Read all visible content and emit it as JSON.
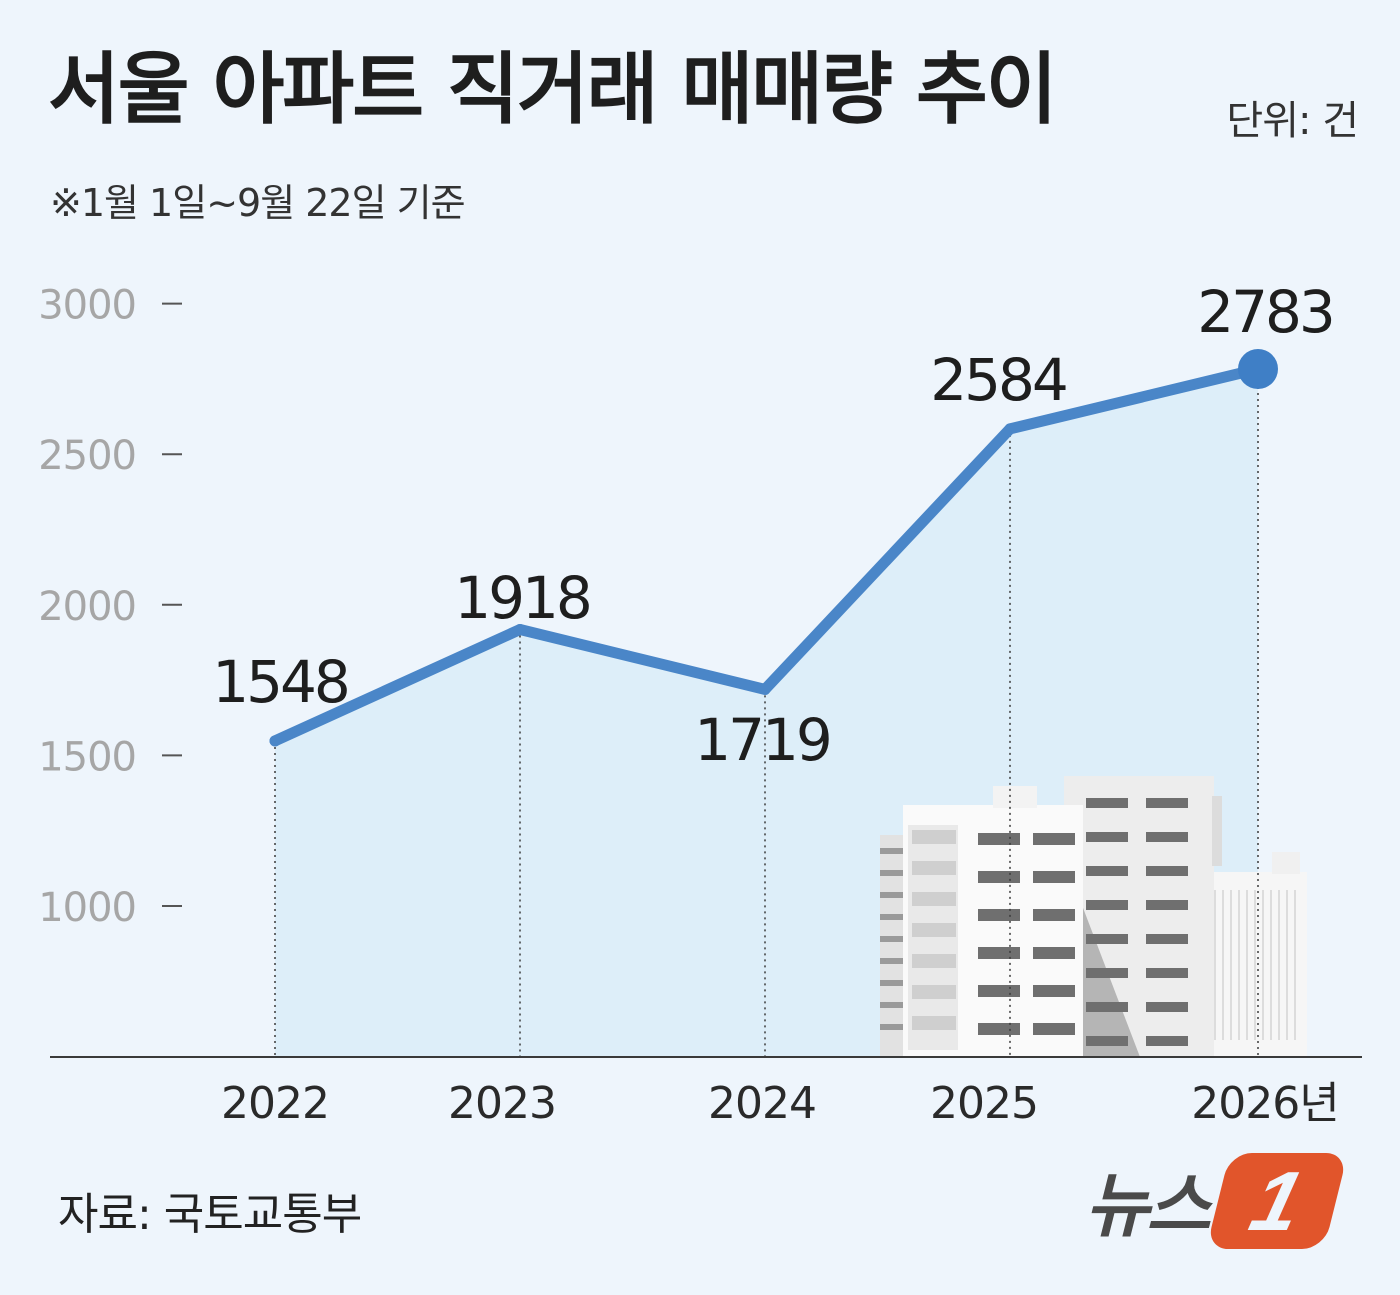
{
  "header": {
    "title": "서울 아파트 직거래 매매량 추이",
    "unit": "단위: 건",
    "note": "※1월 1일~9월 22일 기준"
  },
  "footer": {
    "source": "자료: 국토교통부",
    "logo_text": "뉴스",
    "logo_mark": "1"
  },
  "chart_data": {
    "type": "line",
    "categories": [
      "2022",
      "2023",
      "2024",
      "2025",
      "2026년"
    ],
    "values": [
      1548,
      1918,
      1719,
      2584,
      2783
    ],
    "ylim": [
      500,
      3000
    ],
    "yticks": [
      1000,
      1500,
      2000,
      2500,
      3000
    ],
    "grid": false,
    "colors": {
      "line": "#4a86c8",
      "area": "#ddeef9",
      "tick_label": "#a6a6a6",
      "value_label": "#1e1e1e",
      "highlight_marker": "#3f7fc6"
    }
  }
}
